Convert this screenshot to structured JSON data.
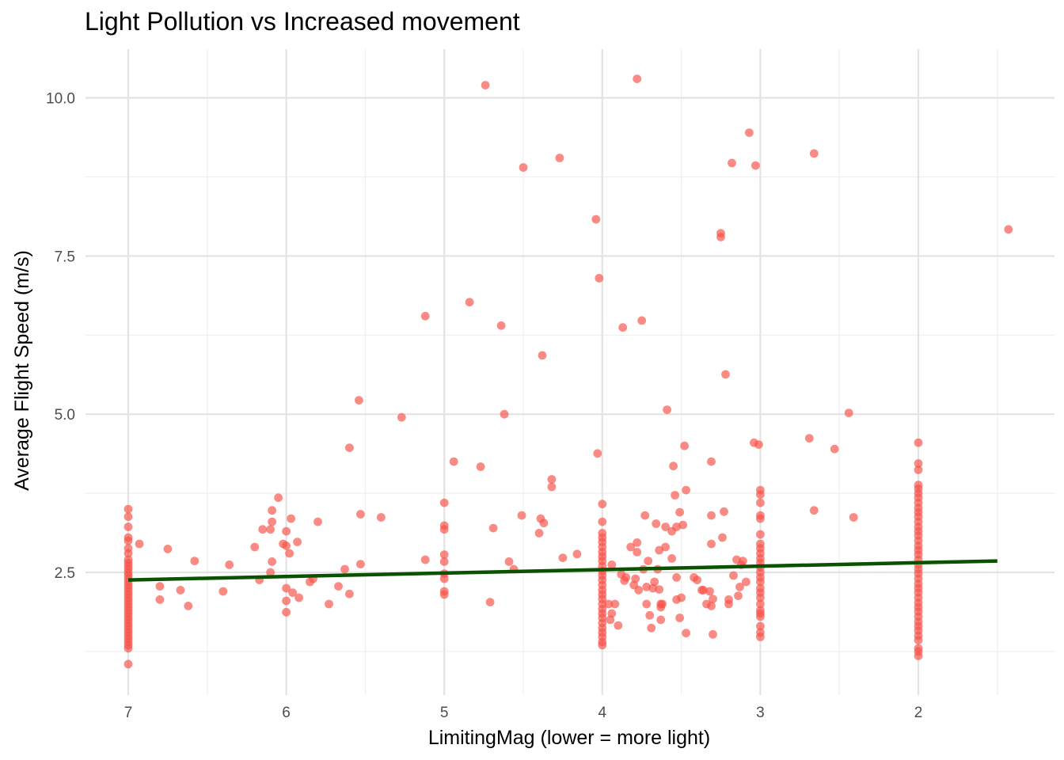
{
  "chart_data": {
    "type": "scatter",
    "title": "Light Pollution vs Increased movement",
    "xlabel": "LimitingMag (lower = more light)",
    "ylabel": "Average Flight Speed (m/s)",
    "x_reversed": true,
    "xlim": [
      7.0,
      1.5
    ],
    "ylim": [
      1.0,
      10.3
    ],
    "x_ticks": [
      7,
      6,
      5,
      4,
      3,
      2
    ],
    "x_tick_labels": [
      "7",
      "6",
      "5",
      "4",
      "3",
      "2"
    ],
    "y_ticks": [
      2.5,
      5.0,
      7.5,
      10.0
    ],
    "y_tick_labels": [
      "2.5",
      "5.0",
      "7.5",
      "10.0"
    ],
    "grid": true,
    "point_color": "#f8534a",
    "line_color": "#0a5200",
    "background": "#ffffff",
    "trend_line": {
      "x": [
        7.0,
        1.5
      ],
      "y": [
        2.38,
        2.68
      ]
    },
    "series": [
      {
        "values": [
          [
            7,
            3.5
          ],
          [
            7,
            3.38
          ],
          [
            7,
            3.22
          ],
          [
            7,
            3.05
          ],
          [
            7,
            3.0
          ],
          [
            7,
            2.88
          ],
          [
            7,
            2.8
          ],
          [
            7,
            2.7
          ],
          [
            7,
            2.65
          ],
          [
            7,
            2.6
          ],
          [
            7,
            2.55
          ],
          [
            7,
            2.5
          ],
          [
            7,
            2.45
          ],
          [
            7,
            2.4
          ],
          [
            7,
            2.35
          ],
          [
            7,
            2.3
          ],
          [
            7,
            2.25
          ],
          [
            7,
            2.2
          ],
          [
            7,
            2.15
          ],
          [
            7,
            2.1
          ],
          [
            7,
            2.05
          ],
          [
            7,
            2.0
          ],
          [
            7,
            1.95
          ],
          [
            7,
            1.9
          ],
          [
            7,
            1.85
          ],
          [
            7,
            1.8
          ],
          [
            7,
            1.75
          ],
          [
            7,
            1.7
          ],
          [
            7,
            1.65
          ],
          [
            7,
            1.6
          ],
          [
            7,
            1.55
          ],
          [
            7,
            1.5
          ],
          [
            7,
            1.45
          ],
          [
            7,
            1.4
          ],
          [
            7,
            1.35
          ],
          [
            7,
            1.3
          ],
          [
            7,
            1.05
          ],
          [
            6.93,
            2.95
          ],
          [
            6.8,
            2.28
          ],
          [
            6.8,
            2.07
          ],
          [
            6.75,
            2.87
          ],
          [
            6.67,
            2.22
          ],
          [
            6.62,
            1.97
          ],
          [
            6.58,
            2.68
          ],
          [
            6.4,
            2.2
          ],
          [
            6.36,
            2.62
          ],
          [
            6.2,
            2.9
          ],
          [
            6.17,
            2.38
          ],
          [
            6.15,
            3.18
          ],
          [
            6.1,
            3.18
          ],
          [
            6.1,
            2.5
          ],
          [
            6.09,
            3.48
          ],
          [
            6.09,
            3.3
          ],
          [
            6.09,
            2.67
          ],
          [
            6.05,
            3.68
          ],
          [
            6.02,
            2.95
          ],
          [
            6.0,
            3.15
          ],
          [
            6.0,
            2.92
          ],
          [
            6.0,
            2.25
          ],
          [
            6.0,
            2.05
          ],
          [
            6.0,
            1.87
          ],
          [
            5.98,
            2.8
          ],
          [
            5.97,
            3.35
          ],
          [
            5.96,
            2.18
          ],
          [
            5.93,
            2.98
          ],
          [
            5.92,
            2.1
          ],
          [
            5.85,
            2.35
          ],
          [
            5.83,
            2.4
          ],
          [
            5.8,
            3.3
          ],
          [
            5.73,
            2.0
          ],
          [
            5.67,
            2.28
          ],
          [
            5.63,
            2.55
          ],
          [
            5.6,
            4.47
          ],
          [
            5.6,
            2.16
          ],
          [
            5.54,
            5.22
          ],
          [
            5.53,
            3.42
          ],
          [
            5.53,
            2.63
          ],
          [
            5.4,
            3.37
          ],
          [
            5.27,
            4.95
          ],
          [
            5.12,
            6.55
          ],
          [
            5.12,
            2.7
          ],
          [
            5.0,
            3.6
          ],
          [
            5.0,
            3.24
          ],
          [
            5.0,
            3.18
          ],
          [
            5.0,
            2.78
          ],
          [
            5.0,
            2.67
          ],
          [
            5.0,
            2.48
          ],
          [
            5.0,
            2.4
          ],
          [
            5.0,
            2.2
          ],
          [
            5.0,
            2.15
          ],
          [
            4.94,
            4.25
          ],
          [
            4.84,
            6.77
          ],
          [
            4.77,
            4.17
          ],
          [
            4.74,
            10.2
          ],
          [
            4.71,
            2.03
          ],
          [
            4.69,
            3.2
          ],
          [
            4.64,
            6.4
          ],
          [
            4.62,
            5.0
          ],
          [
            4.59,
            2.67
          ],
          [
            4.56,
            2.55
          ],
          [
            4.51,
            3.4
          ],
          [
            4.5,
            8.9
          ],
          [
            4.4,
            3.12
          ],
          [
            4.39,
            3.35
          ],
          [
            4.38,
            5.93
          ],
          [
            4.37,
            3.28
          ],
          [
            4.32,
            3.97
          ],
          [
            4.32,
            3.85
          ],
          [
            4.27,
            9.05
          ],
          [
            4.25,
            2.73
          ],
          [
            4.16,
            2.79
          ],
          [
            4.04,
            8.08
          ],
          [
            4.03,
            4.38
          ],
          [
            4.02,
            7.15
          ],
          [
            4,
            3.58
          ],
          [
            4,
            3.3
          ],
          [
            4,
            3.12
          ],
          [
            4,
            3.05
          ],
          [
            4,
            2.98
          ],
          [
            4,
            2.9
          ],
          [
            4,
            2.82
          ],
          [
            4,
            2.75
          ],
          [
            4,
            2.68
          ],
          [
            4,
            2.6
          ],
          [
            4,
            2.52
          ],
          [
            4,
            2.45
          ],
          [
            4,
            2.38
          ],
          [
            4,
            2.3
          ],
          [
            4,
            2.22
          ],
          [
            4,
            2.15
          ],
          [
            4,
            2.08
          ],
          [
            4,
            2.0
          ],
          [
            4,
            1.92
          ],
          [
            4,
            1.85
          ],
          [
            4,
            1.78
          ],
          [
            4,
            1.7
          ],
          [
            4,
            1.62
          ],
          [
            4,
            1.55
          ],
          [
            4,
            1.48
          ],
          [
            4,
            1.4
          ],
          [
            4,
            1.35
          ],
          [
            3.96,
            2.0
          ],
          [
            3.95,
            1.75
          ],
          [
            3.94,
            2.62
          ],
          [
            3.94,
            1.85
          ],
          [
            3.92,
            2.0
          ],
          [
            3.9,
            1.66
          ],
          [
            3.88,
            2.47
          ],
          [
            3.87,
            6.37
          ],
          [
            3.86,
            2.37
          ],
          [
            3.85,
            2.42
          ],
          [
            3.82,
            2.9
          ],
          [
            3.8,
            2.3
          ],
          [
            3.79,
            2.4
          ],
          [
            3.78,
            10.3
          ],
          [
            3.78,
            2.97
          ],
          [
            3.78,
            2.82
          ],
          [
            3.77,
            2.22
          ],
          [
            3.75,
            6.48
          ],
          [
            3.74,
            2.55
          ],
          [
            3.73,
            3.4
          ],
          [
            3.72,
            2.27
          ],
          [
            3.72,
            2.0
          ],
          [
            3.71,
            2.68
          ],
          [
            3.7,
            1.82
          ],
          [
            3.69,
            1.62
          ],
          [
            3.68,
            2.25
          ],
          [
            3.67,
            2.35
          ],
          [
            3.66,
            3.27
          ],
          [
            3.65,
            2.55
          ],
          [
            3.64,
            2.85
          ],
          [
            3.64,
            2.23
          ],
          [
            3.63,
            2.0
          ],
          [
            3.63,
            1.95
          ],
          [
            3.63,
            1.75
          ],
          [
            3.62,
            2.0
          ],
          [
            3.6,
            3.22
          ],
          [
            3.6,
            2.9
          ],
          [
            3.59,
            5.07
          ],
          [
            3.56,
            2.72
          ],
          [
            3.56,
            3.15
          ],
          [
            3.55,
            4.18
          ],
          [
            3.54,
            3.72
          ],
          [
            3.53,
            3.22
          ],
          [
            3.53,
            2.42
          ],
          [
            3.53,
            2.07
          ],
          [
            3.51,
            3.45
          ],
          [
            3.51,
            1.78
          ],
          [
            3.5,
            2.1
          ],
          [
            3.49,
            3.25
          ],
          [
            3.48,
            4.5
          ],
          [
            3.47,
            3.8
          ],
          [
            3.47,
            1.54
          ],
          [
            3.42,
            2.42
          ],
          [
            3.4,
            2.38
          ],
          [
            3.37,
            2.22
          ],
          [
            3.36,
            2.22
          ],
          [
            3.34,
            2.0
          ],
          [
            3.32,
            2.2
          ],
          [
            3.31,
            4.25
          ],
          [
            3.31,
            3.4
          ],
          [
            3.31,
            2.95
          ],
          [
            3.31,
            1.97
          ],
          [
            3.3,
            2.08
          ],
          [
            3.3,
            1.52
          ],
          [
            3.25,
            7.86
          ],
          [
            3.25,
            7.8
          ],
          [
            3.24,
            3.05
          ],
          [
            3.23,
            3.46
          ],
          [
            3.22,
            5.63
          ],
          [
            3.2,
            2.0
          ],
          [
            3.2,
            2.07
          ],
          [
            3.18,
            8.97
          ],
          [
            3.17,
            2.45
          ],
          [
            3.15,
            2.7
          ],
          [
            3.14,
            2.13
          ],
          [
            3.13,
            2.27
          ],
          [
            3.12,
            2.62
          ],
          [
            3.11,
            2.68
          ],
          [
            3.09,
            2.35
          ],
          [
            3.07,
            9.45
          ],
          [
            3.04,
            4.55
          ],
          [
            3.03,
            8.93
          ],
          [
            3.01,
            4.52
          ],
          [
            3,
            3.8
          ],
          [
            3,
            3.73
          ],
          [
            3,
            3.6
          ],
          [
            3,
            3.4
          ],
          [
            3,
            3.35
          ],
          [
            3,
            3.1
          ],
          [
            3,
            2.95
          ],
          [
            3,
            2.88
          ],
          [
            3,
            2.8
          ],
          [
            3,
            2.72
          ],
          [
            3,
            2.65
          ],
          [
            3,
            2.58
          ],
          [
            3,
            2.5
          ],
          [
            3,
            2.42
          ],
          [
            3,
            2.35
          ],
          [
            3,
            2.25
          ],
          [
            3,
            2.18
          ],
          [
            3,
            2.1
          ],
          [
            3,
            2.0
          ],
          [
            3,
            1.9
          ],
          [
            3,
            1.85
          ],
          [
            3,
            1.8
          ],
          [
            3,
            1.65
          ],
          [
            3,
            1.55
          ],
          [
            3,
            1.48
          ],
          [
            2.69,
            4.62
          ],
          [
            2.66,
            9.12
          ],
          [
            2.66,
            3.48
          ],
          [
            2.53,
            4.45
          ],
          [
            2.44,
            5.02
          ],
          [
            2.41,
            3.37
          ],
          [
            2,
            4.55
          ],
          [
            2,
            4.22
          ],
          [
            2,
            4.12
          ],
          [
            2,
            3.88
          ],
          [
            2,
            3.82
          ],
          [
            2,
            3.75
          ],
          [
            2,
            3.68
          ],
          [
            2,
            3.6
          ],
          [
            2,
            3.52
          ],
          [
            2,
            3.45
          ],
          [
            2,
            3.38
          ],
          [
            2,
            3.3
          ],
          [
            2,
            3.22
          ],
          [
            2,
            3.15
          ],
          [
            2,
            3.08
          ],
          [
            2,
            3.0
          ],
          [
            2,
            2.92
          ],
          [
            2,
            2.85
          ],
          [
            2,
            2.78
          ],
          [
            2,
            2.7
          ],
          [
            2,
            2.62
          ],
          [
            2,
            2.55
          ],
          [
            2,
            2.48
          ],
          [
            2,
            2.4
          ],
          [
            2,
            2.32
          ],
          [
            2,
            2.25
          ],
          [
            2,
            2.18
          ],
          [
            2,
            2.1
          ],
          [
            2,
            2.02
          ],
          [
            2,
            1.95
          ],
          [
            2,
            1.88
          ],
          [
            2,
            1.8
          ],
          [
            2,
            1.72
          ],
          [
            2,
            1.65
          ],
          [
            2,
            1.58
          ],
          [
            2,
            1.5
          ],
          [
            2,
            1.43
          ],
          [
            2,
            1.3
          ],
          [
            2,
            1.25
          ],
          [
            2,
            1.18
          ],
          [
            1.43,
            7.92
          ]
        ]
      }
    ]
  }
}
